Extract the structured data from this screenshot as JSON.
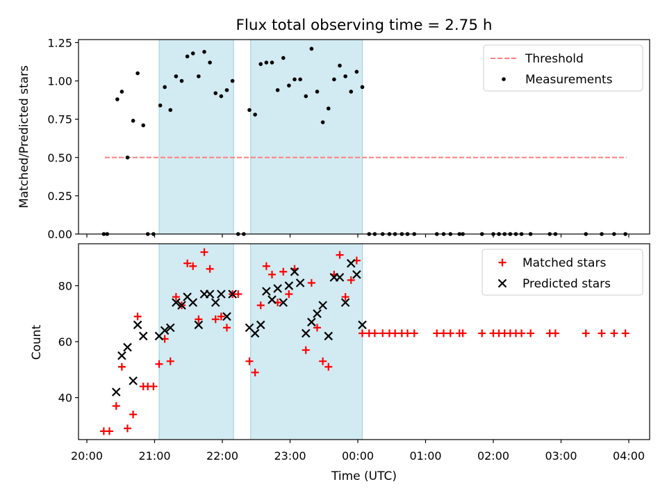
{
  "chart_data": [
    {
      "type": "scatter",
      "title": "Flux total observing time = 2.75 h",
      "ylabel": "Matched/Predicted stars",
      "xlabel": "",
      "x_unit": "time of day (UTC), axis continues past midnight",
      "ylim": [
        0,
        1.27
      ],
      "yticks": [
        "0.00",
        "0.25",
        "0.50",
        "0.75",
        "1.00",
        "1.25"
      ],
      "xticks": [
        "20:00",
        "21:00",
        "22:00",
        "23:00",
        "00:00",
        "01:00",
        "02:00",
        "03:00",
        "04:00"
      ],
      "shaded_intervals": [
        [
          "21:04",
          "22:10"
        ],
        [
          "22:25",
          "00:04"
        ]
      ],
      "legend": {
        "position": "top-right",
        "entries": [
          "Threshold",
          "Measurements"
        ]
      },
      "threshold": {
        "name": "Threshold",
        "value": 0.5,
        "x_start": "20:16",
        "x_end": "03:58",
        "color": "#ff7f7f",
        "style": "dashed"
      },
      "series": [
        {
          "name": "Measurements",
          "color": "#000000",
          "marker": "dot",
          "points": [
            [
              "20:15",
              0
            ],
            [
              "20:18",
              0
            ],
            [
              "20:27",
              0.88
            ],
            [
              "20:31",
              0.93
            ],
            [
              "20:36",
              0.5
            ],
            [
              "20:41",
              0.74
            ],
            [
              "20:45",
              1.05
            ],
            [
              "20:50",
              0.71
            ],
            [
              "20:54",
              0
            ],
            [
              "20:59",
              0
            ],
            [
              "21:05",
              0.84
            ],
            [
              "21:09",
              0.96
            ],
            [
              "21:14",
              0.81
            ],
            [
              "21:19",
              1.03
            ],
            [
              "21:24",
              1.0
            ],
            [
              "21:29",
              1.16
            ],
            [
              "21:34",
              1.18
            ],
            [
              "21:39",
              1.03
            ],
            [
              "21:44",
              1.19
            ],
            [
              "21:49",
              1.12
            ],
            [
              "21:54",
              0.92
            ],
            [
              "21:59",
              0.9
            ],
            [
              "22:04",
              0.94
            ],
            [
              "22:09",
              1.0
            ],
            [
              "22:14",
              0
            ],
            [
              "22:19",
              0
            ],
            [
              "22:24",
              0.81
            ],
            [
              "22:29",
              0.78
            ],
            [
              "22:34",
              1.11
            ],
            [
              "22:39",
              1.12
            ],
            [
              "22:44",
              1.12
            ],
            [
              "22:49",
              0.94
            ],
            [
              "22:54",
              1.15
            ],
            [
              "22:59",
              0.97
            ],
            [
              "23:04",
              1.01
            ],
            [
              "23:09",
              1.01
            ],
            [
              "23:14",
              0.9
            ],
            [
              "23:19",
              1.21
            ],
            [
              "23:24",
              0.93
            ],
            [
              "23:29",
              0.73
            ],
            [
              "23:34",
              0.82
            ],
            [
              "23:39",
              1.01
            ],
            [
              "23:44",
              1.1
            ],
            [
              "23:49",
              1.03
            ],
            [
              "23:54",
              0.93
            ],
            [
              "23:59",
              1.06
            ],
            [
              "00:04",
              0.96
            ],
            [
              "00:10",
              0
            ],
            [
              "00:15",
              0
            ],
            [
              "00:22",
              0
            ],
            [
              "00:28",
              0
            ],
            [
              "00:33",
              0
            ],
            [
              "00:39",
              0
            ],
            [
              "00:44",
              0
            ],
            [
              "00:50",
              0
            ],
            [
              "01:10",
              0
            ],
            [
              "01:16",
              0
            ],
            [
              "01:22",
              0
            ],
            [
              "01:30",
              0
            ],
            [
              "01:33",
              0
            ],
            [
              "01:50",
              0
            ],
            [
              "02:00",
              0
            ],
            [
              "02:05",
              0
            ],
            [
              "02:10",
              0
            ],
            [
              "02:15",
              0
            ],
            [
              "02:20",
              0
            ],
            [
              "02:25",
              0
            ],
            [
              "02:33",
              0
            ],
            [
              "02:50",
              0
            ],
            [
              "02:55",
              0
            ],
            [
              "03:22",
              0
            ],
            [
              "03:36",
              0
            ],
            [
              "03:47",
              0
            ],
            [
              "03:57",
              0
            ]
          ]
        }
      ]
    },
    {
      "type": "scatter",
      "title": "",
      "ylabel": "Count",
      "xlabel": "Time (UTC)",
      "x_unit": "time of day (UTC), axis continues past midnight",
      "ylim": [
        25,
        95
      ],
      "yticks": [
        "40",
        "60",
        "80"
      ],
      "xticks": [
        "20:00",
        "21:00",
        "22:00",
        "23:00",
        "00:00",
        "01:00",
        "02:00",
        "03:00",
        "04:00"
      ],
      "shaded_intervals": [
        [
          "21:04",
          "22:10"
        ],
        [
          "22:25",
          "00:04"
        ]
      ],
      "legend": {
        "position": "top-right",
        "entries": [
          "Matched stars",
          "Predicted stars"
        ]
      },
      "series": [
        {
          "name": "Matched stars",
          "color": "#ff0000",
          "marker": "plus",
          "points": [
            [
              "20:15",
              28
            ],
            [
              "20:20",
              28
            ],
            [
              "20:26",
              37
            ],
            [
              "20:31",
              51
            ],
            [
              "20:36",
              29
            ],
            [
              "20:41",
              34
            ],
            [
              "20:45",
              69
            ],
            [
              "20:50",
              44
            ],
            [
              "20:54",
              44
            ],
            [
              "20:59",
              44
            ],
            [
              "21:04",
              52
            ],
            [
              "21:09",
              61
            ],
            [
              "21:14",
              53
            ],
            [
              "21:19",
              76
            ],
            [
              "21:24",
              73
            ],
            [
              "21:29",
              88
            ],
            [
              "21:34",
              87
            ],
            [
              "21:39",
              68
            ],
            [
              "21:44",
              92
            ],
            [
              "21:49",
              86
            ],
            [
              "21:54",
              68
            ],
            [
              "21:59",
              69
            ],
            [
              "22:04",
              65
            ],
            [
              "22:09",
              77
            ],
            [
              "22:14",
              77
            ],
            [
              "22:24",
              53
            ],
            [
              "22:29",
              49
            ],
            [
              "22:34",
              73
            ],
            [
              "22:39",
              87
            ],
            [
              "22:44",
              84
            ],
            [
              "22:49",
              74
            ],
            [
              "22:54",
              85
            ],
            [
              "22:59",
              77
            ],
            [
              "23:04",
              86
            ],
            [
              "23:14",
              57
            ],
            [
              "23:19",
              81
            ],
            [
              "23:24",
              65
            ],
            [
              "23:29",
              53
            ],
            [
              "23:34",
              51
            ],
            [
              "23:39",
              84
            ],
            [
              "23:44",
              91
            ],
            [
              "23:49",
              76
            ],
            [
              "23:54",
              82
            ],
            [
              "23:59",
              89
            ],
            [
              "00:04",
              63
            ],
            [
              "00:10",
              63
            ],
            [
              "00:15",
              63
            ],
            [
              "00:22",
              63
            ],
            [
              "00:28",
              63
            ],
            [
              "00:33",
              63
            ],
            [
              "00:39",
              63
            ],
            [
              "00:44",
              63
            ],
            [
              "00:50",
              63
            ],
            [
              "01:10",
              63
            ],
            [
              "01:16",
              63
            ],
            [
              "01:22",
              63
            ],
            [
              "01:30",
              63
            ],
            [
              "01:33",
              63
            ],
            [
              "01:50",
              63
            ],
            [
              "02:00",
              63
            ],
            [
              "02:05",
              63
            ],
            [
              "02:10",
              63
            ],
            [
              "02:15",
              63
            ],
            [
              "02:20",
              63
            ],
            [
              "02:25",
              63
            ],
            [
              "02:33",
              63
            ],
            [
              "02:50",
              63
            ],
            [
              "02:55",
              63
            ],
            [
              "03:22",
              63
            ],
            [
              "03:36",
              63
            ],
            [
              "03:47",
              63
            ],
            [
              "03:57",
              63
            ]
          ]
        },
        {
          "name": "Predicted stars",
          "color": "#000000",
          "marker": "x",
          "points": [
            [
              "20:26",
              42
            ],
            [
              "20:31",
              55
            ],
            [
              "20:36",
              58
            ],
            [
              "20:41",
              46
            ],
            [
              "20:45",
              66
            ],
            [
              "20:50",
              62
            ],
            [
              "21:04",
              62
            ],
            [
              "21:09",
              64
            ],
            [
              "21:14",
              65
            ],
            [
              "21:19",
              74
            ],
            [
              "21:24",
              73
            ],
            [
              "21:29",
              76
            ],
            [
              "21:34",
              74
            ],
            [
              "21:39",
              66
            ],
            [
              "21:44",
              77
            ],
            [
              "21:49",
              77
            ],
            [
              "21:54",
              74
            ],
            [
              "21:59",
              77
            ],
            [
              "22:04",
              69
            ],
            [
              "22:09",
              77
            ],
            [
              "22:24",
              65
            ],
            [
              "22:29",
              63
            ],
            [
              "22:34",
              66
            ],
            [
              "22:39",
              78
            ],
            [
              "22:44",
              75
            ],
            [
              "22:49",
              79
            ],
            [
              "22:54",
              74
            ],
            [
              "22:59",
              80
            ],
            [
              "23:04",
              85
            ],
            [
              "23:09",
              81
            ],
            [
              "23:14",
              63
            ],
            [
              "23:19",
              67
            ],
            [
              "23:24",
              70
            ],
            [
              "23:29",
              73
            ],
            [
              "23:34",
              62
            ],
            [
              "23:39",
              83
            ],
            [
              "23:44",
              83
            ],
            [
              "23:49",
              74
            ],
            [
              "23:54",
              88
            ],
            [
              "23:59",
              84
            ],
            [
              "00:04",
              66
            ]
          ]
        }
      ]
    }
  ]
}
